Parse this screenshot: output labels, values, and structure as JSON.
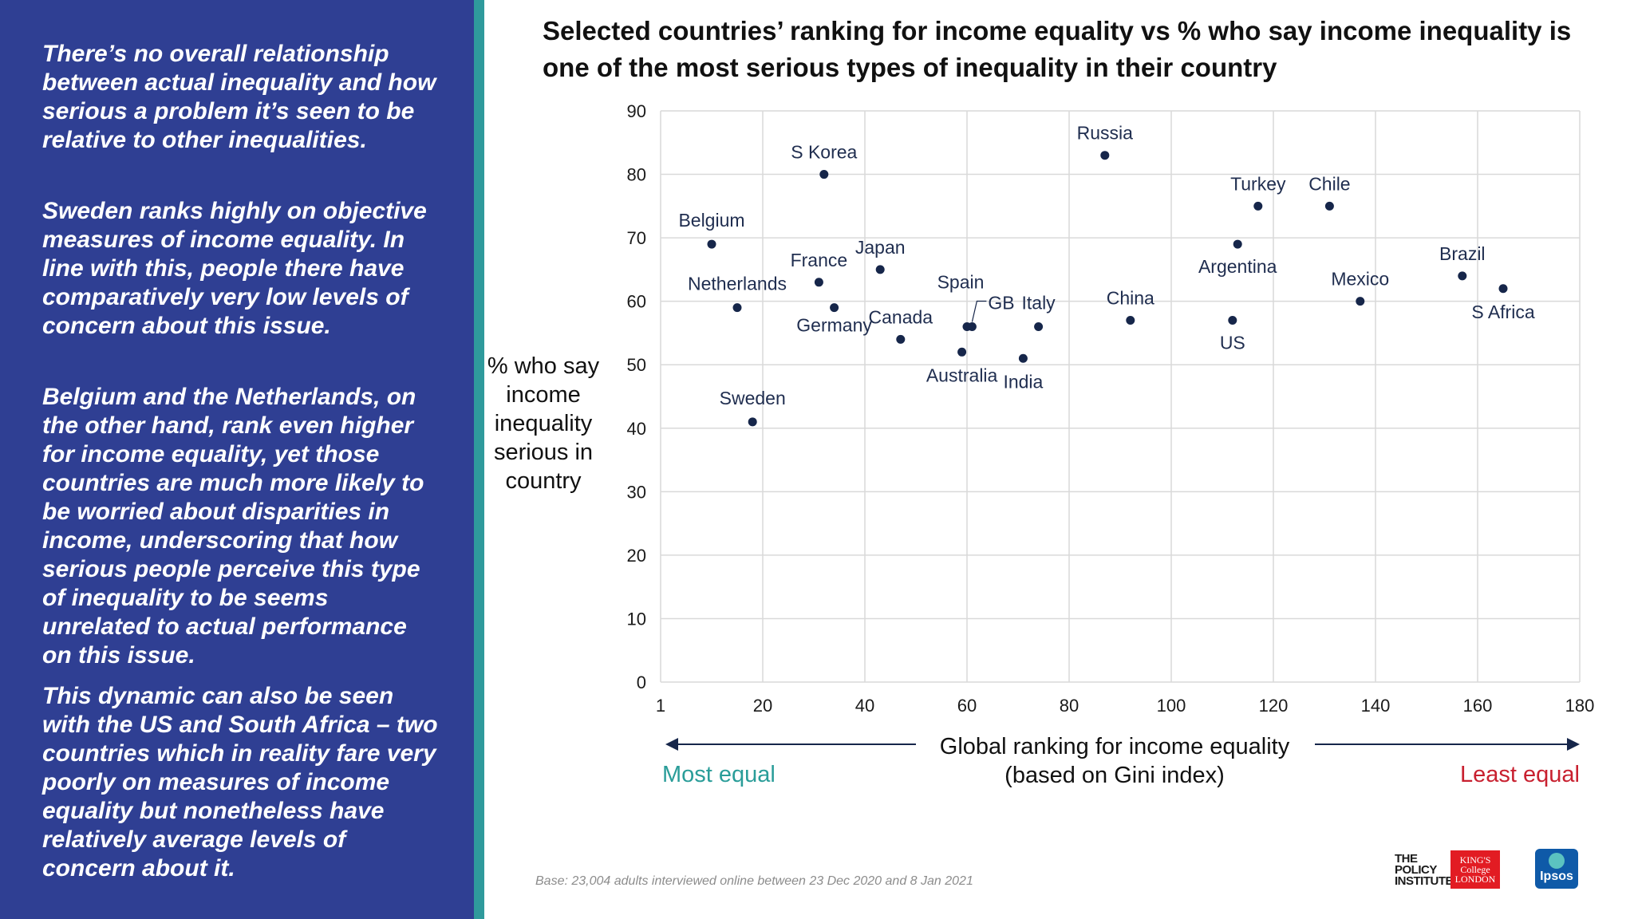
{
  "sidebar": {
    "paragraphs": [
      "There’s no overall relationship between actual inequality and how serious a problem it’s seen to be relative to other inequalities.",
      "Sweden ranks highly on objective measures of income equality. In line with this, people there have comparatively very low levels of concern about this issue.",
      "Belgium and the Netherlands, on the other hand, rank even higher for income equality, yet those countries are much more likely to be worried about disparities in income, underscoring that how serious people perceive this type of inequality to be seems unrelated to actual performance on this issue.",
      "This dynamic can also be seen with the US and South Africa – two countries which in reality fare very poorly on measures of income equality but nonetheless have relatively average levels of concern about it."
    ]
  },
  "colors": {
    "panel": "#2f3f93",
    "stripe": "#2f9a9c",
    "point": "#16264a",
    "most_equal": "#2a9d99",
    "least_equal": "#c8202f"
  },
  "chart_data": {
    "type": "scatter",
    "title": "Selected countries’ ranking for income equality vs % who say income inequality is one of the most serious types of inequality in their country",
    "ylabel": "% who say income inequality serious in country",
    "xlabel_lines": [
      "Global ranking for income equality",
      "(based on Gini index)"
    ],
    "x_left_annotation": "Most equal",
    "x_right_annotation": "Least equal",
    "xlim": [
      0,
      180
    ],
    "ylim": [
      0,
      90
    ],
    "x_ticks": [
      {
        "v": 0,
        "label": "1"
      },
      {
        "v": 20,
        "label": "20"
      },
      {
        "v": 40,
        "label": "40"
      },
      {
        "v": 60,
        "label": "60"
      },
      {
        "v": 80,
        "label": "80"
      },
      {
        "v": 100,
        "label": "100"
      },
      {
        "v": 120,
        "label": "120"
      },
      {
        "v": 140,
        "label": "140"
      },
      {
        "v": 160,
        "label": "160"
      },
      {
        "v": 180,
        "label": "180"
      }
    ],
    "y_ticks": [
      0,
      10,
      20,
      30,
      40,
      50,
      60,
      70,
      80,
      90
    ],
    "grid": true,
    "points": [
      {
        "name": "Belgium",
        "x": 10,
        "y": 69
      },
      {
        "name": "Netherlands",
        "x": 15,
        "y": 59
      },
      {
        "name": "Sweden",
        "x": 18,
        "y": 41
      },
      {
        "name": "S Korea",
        "x": 32,
        "y": 80
      },
      {
        "name": "France",
        "x": 31,
        "y": 63
      },
      {
        "name": "Germany",
        "x": 34,
        "y": 59
      },
      {
        "name": "Japan",
        "x": 43,
        "y": 65
      },
      {
        "name": "Canada",
        "x": 47,
        "y": 54
      },
      {
        "name": "Spain",
        "x": 60,
        "y": 56
      },
      {
        "name": "GB",
        "x": 61,
        "y": 56
      },
      {
        "name": "Australia",
        "x": 59,
        "y": 52
      },
      {
        "name": "Italy",
        "x": 74,
        "y": 56
      },
      {
        "name": "India",
        "x": 71,
        "y": 51
      },
      {
        "name": "Russia",
        "x": 87,
        "y": 83
      },
      {
        "name": "China",
        "x": 92,
        "y": 57
      },
      {
        "name": "Argentina",
        "x": 113,
        "y": 69
      },
      {
        "name": "US",
        "x": 112,
        "y": 57
      },
      {
        "name": "Turkey",
        "x": 117,
        "y": 75
      },
      {
        "name": "Chile",
        "x": 131,
        "y": 75
      },
      {
        "name": "Mexico",
        "x": 137,
        "y": 60
      },
      {
        "name": "Brazil",
        "x": 157,
        "y": 64
      },
      {
        "name": "S Africa",
        "x": 165,
        "y": 62
      }
    ]
  },
  "footer": {
    "base_note": "Base: 23,004 adults interviewed online between 23 Dec 2020 and 8 Jan 2021",
    "logo_policy_institute": "THE POLICY INSTITUTE",
    "logo_kings": "KING'S College LONDON",
    "logo_ipsos": "Ipsos"
  }
}
